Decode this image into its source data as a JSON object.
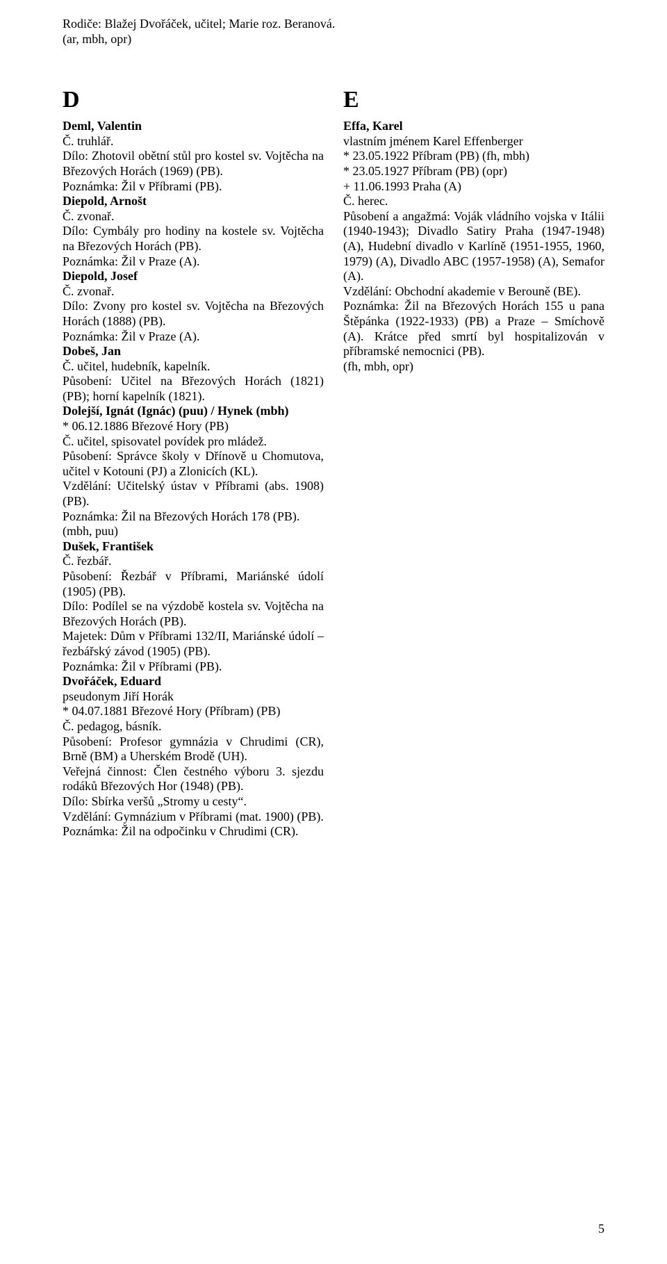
{
  "top": {
    "line1": "Rodiče: Blažej Dvořáček, učitel; Marie roz. Beranová.",
    "line2": "(ar, mbh, opr)"
  },
  "page_number": "5",
  "left": {
    "letter": "D",
    "entries": [
      {
        "head": "Deml, Valentin",
        "lines": [
          "Č. truhlář.",
          "Dílo: Zhotovil obětní stůl pro kostel sv. Vojtěcha na Březových Horách (1969) (PB).",
          "Poznámka: Žil v Příbrami (PB)."
        ]
      },
      {
        "head": "Diepold, Arnošt",
        "lines": [
          "Č. zvonař.",
          "Dílo: Cymbály pro hodiny na kostele sv. Vojtěcha na Březových Horách (PB).",
          "Poznámka: Žil v Praze (A)."
        ]
      },
      {
        "head": "Diepold, Josef",
        "lines": [
          "Č. zvonař.",
          "Dílo: Zvony pro kostel sv. Vojtěcha na Březových Horách (1888) (PB).",
          "Poznámka: Žil v Praze (A)."
        ]
      },
      {
        "head": "Dobeš, Jan",
        "lines": [
          "Č. učitel, hudebník, kapelník.",
          "Působení: Učitel na Březových Horách (1821) (PB); horní kapelník (1821)."
        ]
      },
      {
        "head": "Dolejší, Ignát (Ignác) (puu) / Hynek (mbh)",
        "lines": [
          "* 06.12.1886 Březové Hory (PB)",
          "Č. učitel, spisovatel povídek pro mládež.",
          "Působení: Správce školy v Dřínově u Chomutova, učitel v Kotouni (PJ) a Zlonicích (KL).",
          "Vzdělání: Učitelský ústav v Příbrami (abs. 1908) (PB).",
          "Poznámka: Žil na Březových Horách 178 (PB).",
          "(mbh, puu)"
        ]
      },
      {
        "head": "Dušek, František",
        "lines": [
          "Č. řezbář.",
          "Působení: Řezbář v Příbrami, Mariánské údolí (1905) (PB).",
          "Dílo: Podílel se na výzdobě kostela sv. Vojtěcha na Březových Horách (PB).",
          "Majetek: Dům v Příbrami 132/II, Mariánské údolí – řezbářský závod (1905) (PB).",
          "Poznámka: Žil v Příbrami (PB)."
        ]
      },
      {
        "head": "Dvořáček, Eduard",
        "lines": [
          "pseudonym Jiří Horák",
          "* 04.07.1881 Březové Hory (Příbram) (PB)",
          "Č. pedagog, básník.",
          "Působení: Profesor gymnázia v Chrudimi (CR), Brně (BM) a Uherském Brodě (UH).",
          "Veřejná činnost: Člen čestného výboru 3. sjezdu rodáků Březových Hor (1948) (PB).",
          "Dílo: Sbírka veršů „Stromy u cesty“.",
          "Vzdělání: Gymnázium v Příbrami (mat. 1900) (PB).",
          "Poznámka: Žil na odpočinku v Chrudimi (CR)."
        ]
      }
    ]
  },
  "right": {
    "letter": "E",
    "entries": [
      {
        "head": "Effa, Karel",
        "lines": [
          "vlastním jménem Karel Effenberger",
          "* 23.05.1922 Příbram (PB) (fh, mbh)",
          "* 23.05.1927 Příbram (PB) (opr)",
          "+ 11.06.1993 Praha (A)",
          "Č. herec.",
          "Působení a angažmá: Voják vládního vojska v Itálii (1940-1943); Divadlo Satiry Praha (1947-1948) (A), Hudební divadlo v Karlíně (1951-1955, 1960, 1979) (A), Divadlo ABC (1957-1958) (A), Semafor (A).",
          "Vzdělání: Obchodní akademie v Berouně (BE).",
          "Poznámka: Žil na Březových Horách 155 u pana Štěpánka (1922-1933) (PB) a Praze – Smíchově (A). Krátce před smrtí byl hospitalizován v příbramské nemocnici (PB).",
          "(fh, mbh, opr)"
        ]
      }
    ]
  }
}
